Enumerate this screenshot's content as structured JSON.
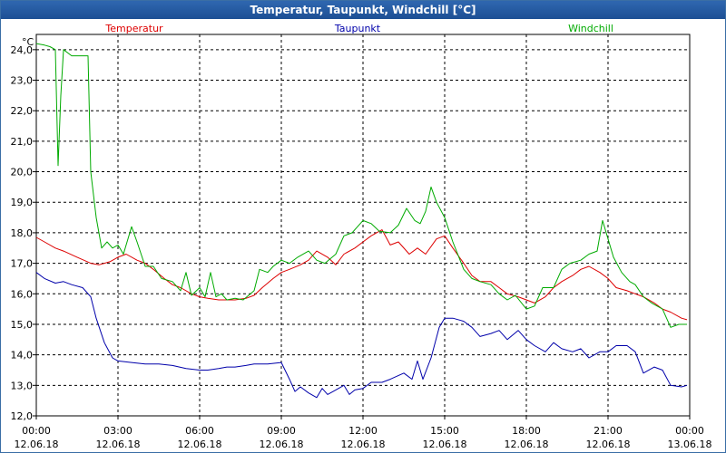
{
  "chart_data": {
    "type": "line",
    "title": "Temperatur, Taupunkt, Windchill [°C]",
    "ylabel": "°C",
    "ylim": [
      12.0,
      24.5
    ],
    "y_ticks": [
      "12,0",
      "13,0",
      "14,0",
      "15,0",
      "16,0",
      "17,0",
      "18,0",
      "19,0",
      "20,0",
      "21,0",
      "22,0",
      "23,0",
      "24,0"
    ],
    "y_tick_values": [
      12,
      13,
      14,
      15,
      16,
      17,
      18,
      19,
      20,
      21,
      22,
      23,
      24
    ],
    "xlim": [
      0,
      24
    ],
    "x_ticks": [
      {
        "time": "00:00",
        "date": "12.06.18"
      },
      {
        "time": "03:00",
        "date": "12.06.18"
      },
      {
        "time": "06:00",
        "date": "12.06.18"
      },
      {
        "time": "09:00",
        "date": "12.06.18"
      },
      {
        "time": "12:00",
        "date": "12.06.18"
      },
      {
        "time": "15:00",
        "date": "12.06.18"
      },
      {
        "time": "18:00",
        "date": "12.06.18"
      },
      {
        "time": "21:00",
        "date": "12.06.18"
      },
      {
        "time": "00:00",
        "date": "13.06.18"
      }
    ],
    "x_tick_values": [
      0,
      3,
      6,
      9,
      12,
      15,
      18,
      21,
      24
    ],
    "grid": true,
    "series": [
      {
        "name": "Temperatur",
        "color": "#dd0000",
        "x": [
          0,
          0.3,
          0.7,
          1.0,
          1.5,
          2.0,
          2.3,
          2.7,
          3.0,
          3.3,
          3.7,
          4.0,
          4.3,
          4.7,
          5.0,
          5.3,
          5.7,
          6.0,
          6.3,
          6.7,
          7.0,
          7.3,
          7.7,
          8.0,
          8.3,
          8.7,
          9.0,
          9.3,
          9.7,
          10.0,
          10.3,
          10.7,
          11.0,
          11.3,
          11.7,
          12.0,
          12.3,
          12.7,
          13.0,
          13.3,
          13.7,
          14.0,
          14.3,
          14.7,
          15.0,
          15.3,
          15.7,
          16.0,
          16.3,
          16.7,
          17.0,
          17.3,
          17.7,
          18.0,
          18.3,
          18.7,
          19.0,
          19.3,
          19.7,
          20.0,
          20.3,
          20.7,
          21.0,
          21.3,
          21.7,
          22.0,
          22.3,
          22.7,
          23.0,
          23.3,
          23.7,
          23.9
        ],
        "values": [
          17.85,
          17.7,
          17.5,
          17.4,
          17.2,
          17.0,
          16.95,
          17.05,
          17.2,
          17.3,
          17.1,
          17.0,
          16.8,
          16.5,
          16.3,
          16.2,
          16.0,
          15.9,
          15.85,
          15.8,
          15.8,
          15.8,
          15.85,
          15.95,
          16.2,
          16.5,
          16.7,
          16.8,
          16.95,
          17.1,
          17.4,
          17.2,
          16.95,
          17.3,
          17.5,
          17.7,
          17.9,
          18.1,
          17.6,
          17.7,
          17.3,
          17.5,
          17.3,
          17.8,
          17.9,
          17.5,
          17.0,
          16.6,
          16.4,
          16.4,
          16.2,
          16.0,
          15.9,
          15.8,
          15.7,
          15.9,
          16.2,
          16.4,
          16.6,
          16.8,
          16.9,
          16.7,
          16.5,
          16.2,
          16.1,
          16.0,
          15.9,
          15.7,
          15.5,
          15.4,
          15.2,
          15.15
        ]
      },
      {
        "name": "Taupunkt",
        "color": "#0000aa",
        "x": [
          0,
          0.3,
          0.7,
          1.0,
          1.3,
          1.7,
          2.0,
          2.2,
          2.5,
          2.8,
          3.0,
          3.5,
          4.0,
          4.5,
          5.0,
          5.5,
          6.0,
          6.3,
          6.7,
          7.0,
          7.3,
          7.7,
          8.0,
          8.5,
          9.0,
          9.3,
          9.5,
          9.7,
          10.0,
          10.3,
          10.5,
          10.7,
          11.0,
          11.3,
          11.5,
          11.7,
          12.0,
          12.3,
          12.7,
          13.0,
          13.5,
          13.8,
          14.0,
          14.2,
          14.5,
          14.8,
          15.0,
          15.3,
          15.7,
          16.0,
          16.3,
          16.7,
          17.0,
          17.3,
          17.7,
          18.0,
          18.3,
          18.7,
          19.0,
          19.3,
          19.7,
          20.0,
          20.3,
          20.7,
          21.0,
          21.3,
          21.7,
          22.0,
          22.3,
          22.7,
          23.0,
          23.3,
          23.7,
          23.9
        ],
        "values": [
          16.7,
          16.5,
          16.35,
          16.4,
          16.3,
          16.2,
          15.9,
          15.2,
          14.4,
          13.9,
          13.8,
          13.75,
          13.7,
          13.7,
          13.65,
          13.55,
          13.5,
          13.5,
          13.55,
          13.6,
          13.6,
          13.65,
          13.7,
          13.7,
          13.75,
          13.2,
          12.8,
          12.95,
          12.75,
          12.6,
          12.9,
          12.7,
          12.85,
          13.0,
          12.7,
          12.85,
          12.9,
          13.1,
          13.1,
          13.2,
          13.4,
          13.2,
          13.8,
          13.2,
          13.9,
          14.9,
          15.2,
          15.2,
          15.1,
          14.9,
          14.6,
          14.7,
          14.8,
          14.5,
          14.8,
          14.5,
          14.3,
          14.1,
          14.4,
          14.2,
          14.1,
          14.2,
          13.9,
          14.1,
          14.1,
          14.3,
          14.3,
          14.1,
          13.4,
          13.6,
          13.5,
          13.0,
          12.95,
          13.0
        ]
      },
      {
        "name": "Windchill",
        "color": "#00aa00",
        "x": [
          0,
          0.3,
          0.5,
          0.7,
          0.8,
          0.9,
          1.0,
          1.3,
          1.6,
          1.9,
          2.0,
          2.2,
          2.4,
          2.6,
          2.8,
          3.0,
          3.2,
          3.5,
          3.7,
          4.0,
          4.3,
          4.6,
          5.0,
          5.3,
          5.5,
          5.7,
          6.0,
          6.2,
          6.4,
          6.6,
          6.8,
          7.0,
          7.3,
          7.6,
          8.0,
          8.2,
          8.5,
          8.7,
          9.0,
          9.3,
          9.6,
          10.0,
          10.3,
          10.6,
          11.0,
          11.3,
          11.6,
          12.0,
          12.3,
          12.6,
          13.0,
          13.3,
          13.6,
          13.9,
          14.1,
          14.3,
          14.5,
          14.7,
          15.0,
          15.3,
          15.7,
          16.0,
          16.3,
          16.7,
          17.0,
          17.3,
          17.6,
          18.0,
          18.3,
          18.6,
          19.0,
          19.3,
          19.6,
          20.0,
          20.3,
          20.6,
          20.8,
          21.0,
          21.2,
          21.5,
          21.8,
          22.0,
          22.3,
          22.6,
          23.0,
          23.3,
          23.6,
          23.9
        ],
        "values": [
          24.2,
          24.15,
          24.1,
          24.0,
          20.2,
          22.5,
          24.0,
          23.8,
          23.8,
          23.8,
          20.0,
          18.5,
          17.5,
          17.7,
          17.5,
          17.6,
          17.3,
          18.2,
          17.7,
          16.9,
          16.9,
          16.5,
          16.4,
          16.1,
          16.7,
          15.95,
          16.2,
          15.9,
          16.7,
          15.9,
          16.0,
          15.8,
          15.85,
          15.8,
          16.1,
          16.8,
          16.7,
          16.9,
          17.1,
          17.0,
          17.2,
          17.4,
          17.1,
          17.0,
          17.3,
          17.9,
          18.0,
          18.4,
          18.3,
          18.05,
          18.0,
          18.25,
          18.8,
          18.4,
          18.3,
          18.7,
          19.5,
          19.0,
          18.5,
          17.7,
          16.8,
          16.5,
          16.4,
          16.3,
          16.0,
          15.8,
          15.95,
          15.5,
          15.6,
          16.2,
          16.2,
          16.8,
          17.0,
          17.1,
          17.3,
          17.4,
          18.4,
          17.8,
          17.2,
          16.7,
          16.4,
          16.3,
          15.9,
          15.7,
          15.5,
          14.9,
          15.0,
          15.0
        ]
      }
    ]
  }
}
